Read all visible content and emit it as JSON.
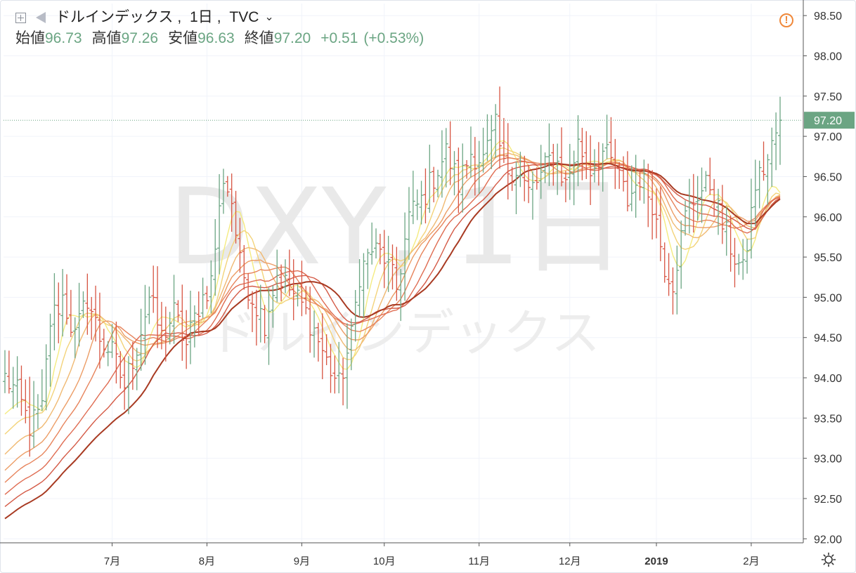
{
  "header": {
    "symbol_name": "ドルインデックス",
    "interval": "1日",
    "source": "TVC",
    "ohlc": [
      {
        "label": "始値",
        "value": "96.73"
      },
      {
        "label": "高値",
        "value": "97.26"
      },
      {
        "label": "安値",
        "value": "96.63"
      },
      {
        "label": "終値",
        "value": "97.20"
      }
    ],
    "change": "+0.51",
    "change_pct": "(+0.53%)"
  },
  "watermark": {
    "main": "DXY, 1日",
    "sub": "ドルインデックス"
  },
  "colors": {
    "up": "#6ba583",
    "down": "#d75442",
    "accent": "#f0883a"
  },
  "chart_data": {
    "type": "line",
    "y_axis": {
      "ticks": [
        "92.00",
        "92.50",
        "93.00",
        "93.50",
        "94.00",
        "94.50",
        "95.00",
        "95.50",
        "96.00",
        "96.50",
        "97.00",
        "97.50",
        "98.00",
        "98.50"
      ],
      "range": [
        91.95,
        98.65
      ],
      "last_price_label": "97.20",
      "last_price": 97.2
    },
    "x_axis": {
      "ticks": [
        {
          "label": "7月",
          "bar": 26
        },
        {
          "label": "8月",
          "bar": 49
        },
        {
          "label": "9月",
          "bar": 72
        },
        {
          "label": "10月",
          "bar": 92
        },
        {
          "label": "11月",
          "bar": 115
        },
        {
          "label": "12月",
          "bar": 137
        },
        {
          "label": "2019",
          "bar": 158,
          "bold": true
        },
        {
          "label": "2月",
          "bar": 181
        }
      ],
      "bar_count": 189
    },
    "price_anchors": [
      [
        0,
        94.0
      ],
      [
        3,
        93.8
      ],
      [
        6,
        93.4
      ],
      [
        9,
        93.6
      ],
      [
        11,
        94.7
      ],
      [
        14,
        95.0
      ],
      [
        17,
        94.5
      ],
      [
        20,
        95.0
      ],
      [
        23,
        94.5
      ],
      [
        26,
        94.3
      ],
      [
        29,
        93.9
      ],
      [
        32,
        94.4
      ],
      [
        35,
        95.0
      ],
      [
        38,
        94.5
      ],
      [
        41,
        94.8
      ],
      [
        44,
        94.4
      ],
      [
        47,
        94.9
      ],
      [
        50,
        95.2
      ],
      [
        53,
        96.5
      ],
      [
        55,
        96.2
      ],
      [
        57,
        95.4
      ],
      [
        60,
        95.0
      ],
      [
        63,
        94.7
      ],
      [
        66,
        95.3
      ],
      [
        69,
        95.1
      ],
      [
        72,
        94.9
      ],
      [
        75,
        94.6
      ],
      [
        78,
        94.2
      ],
      [
        81,
        93.9
      ],
      [
        84,
        94.5
      ],
      [
        86,
        95.3
      ],
      [
        89,
        95.6
      ],
      [
        92,
        95.5
      ],
      [
        95,
        95.1
      ],
      [
        98,
        96.0
      ],
      [
        101,
        96.2
      ],
      [
        104,
        96.5
      ],
      [
        107,
        96.8
      ],
      [
        110,
        96.4
      ],
      [
        113,
        96.8
      ],
      [
        116,
        96.7
      ],
      [
        119,
        97.1
      ],
      [
        121,
        96.6
      ],
      [
        124,
        96.6
      ],
      [
        127,
        96.3
      ],
      [
        130,
        96.5
      ],
      [
        133,
        96.8
      ],
      [
        136,
        96.4
      ],
      [
        139,
        96.9
      ],
      [
        142,
        96.6
      ],
      [
        145,
        96.8
      ],
      [
        148,
        96.6
      ],
      [
        151,
        96.2
      ],
      [
        154,
        96.5
      ],
      [
        157,
        96.2
      ],
      [
        160,
        95.4
      ],
      [
        162,
        95.2
      ],
      [
        165,
        96.0
      ],
      [
        168,
        96.3
      ],
      [
        171,
        96.4
      ],
      [
        174,
        95.9
      ],
      [
        177,
        95.5
      ],
      [
        179,
        95.3
      ],
      [
        182,
        96.4
      ],
      [
        185,
        96.7
      ],
      [
        188,
        97.2
      ]
    ],
    "ribbon": {
      "colors": [
        "#f4eb80",
        "#f3d37a",
        "#f0b972",
        "#ec9d66",
        "#e7845c",
        "#df6c52",
        "#d45a46",
        "#a83a22"
      ],
      "ends": [
        {
          "first": 93.55,
          "last": 96.3
        },
        {
          "first": 93.3,
          "last": 96.28
        },
        {
          "first": 93.05,
          "last": 96.27
        },
        {
          "first": 92.85,
          "last": 96.26
        },
        {
          "first": 92.7,
          "last": 96.25
        },
        {
          "first": 92.55,
          "last": 96.24
        },
        {
          "first": 92.4,
          "last": 96.23
        },
        {
          "first": 92.25,
          "last": 96.22
        }
      ]
    }
  }
}
